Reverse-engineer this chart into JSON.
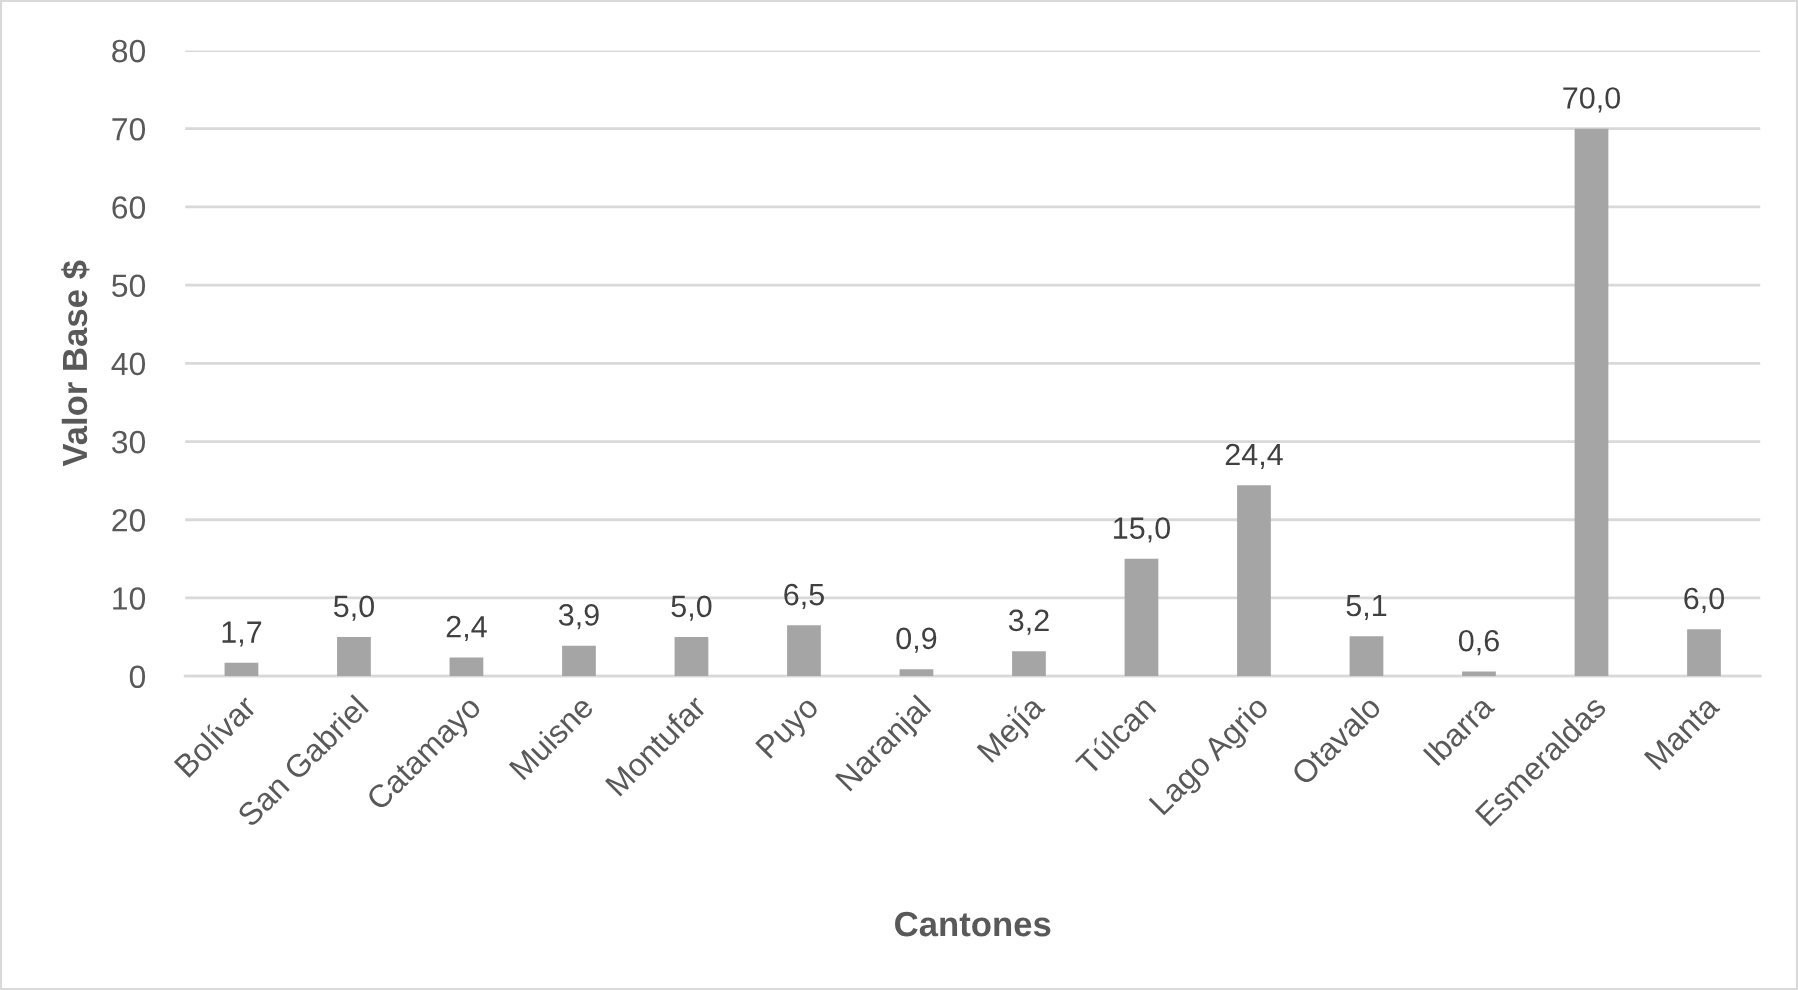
{
  "chart_data": {
    "type": "bar",
    "categories": [
      "Bolívar",
      "San Gabriel",
      "Catamayo",
      "Muisne",
      "Montufar",
      "Puyo",
      "Naranjal",
      "Mejía",
      "Túlcan",
      "Lago Agrio",
      "Otavalo",
      "Ibarra",
      "Esmeraldas",
      "Manta"
    ],
    "values": [
      1.7,
      5.0,
      2.4,
      3.9,
      5.0,
      6.5,
      0.9,
      3.2,
      15.0,
      24.4,
      5.1,
      0.6,
      70.0,
      6.0
    ],
    "value_labels": [
      "1,7",
      "5,0",
      "2,4",
      "3,9",
      "5,0",
      "6,5",
      "0,9",
      "3,2",
      "15,0",
      "24,4",
      "5,1",
      "0,6",
      "70,0",
      "6,0"
    ],
    "color": "#a5a5a5",
    "xlabel": "Cantones",
    "ylabel": "Valor Base $",
    "ylim": [
      0,
      80
    ],
    "yticks": [
      0,
      10,
      20,
      30,
      40,
      50,
      60,
      70,
      80
    ],
    "grid": "y",
    "legend": false
  }
}
